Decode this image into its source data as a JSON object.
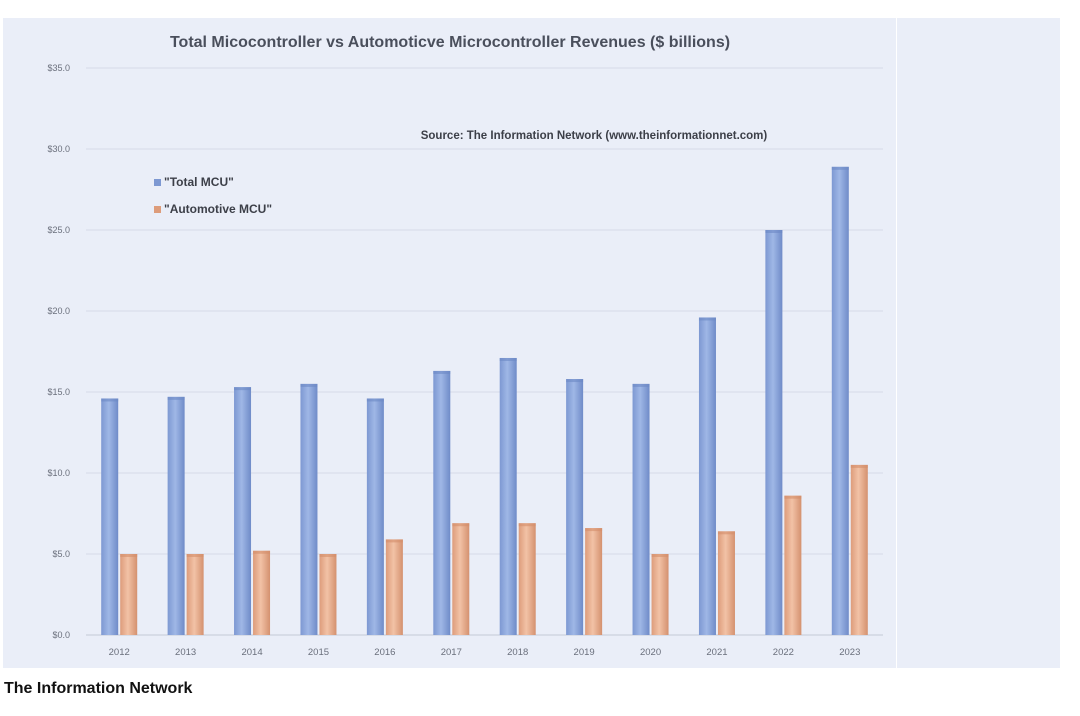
{
  "caption": "The Information Network",
  "colors": {
    "panel": "#eaeef8",
    "total": "#8ea9dc",
    "total_dark": "#6c88c4",
    "auto": "#eab192",
    "auto_dark": "#d48d6b"
  },
  "chart_data": {
    "type": "bar",
    "title": "Total Micocontroller vs Automoticve Microcontroller Revenues ($ billions)",
    "annotation": "Source: The Information Network (www.theinformationnet.com)",
    "xlabel": "",
    "ylabel": "",
    "ylim": [
      0,
      35
    ],
    "yticks": [
      "$0.0",
      "$5.0",
      "$10.0",
      "$15.0",
      "$20.0",
      "$25.0",
      "$30.0",
      "$35.0"
    ],
    "ytick_values": [
      0,
      5,
      10,
      15,
      20,
      25,
      30,
      35
    ],
    "grid": true,
    "legend_position": "top-left",
    "categories": [
      "2012",
      "2013",
      "2014",
      "2015",
      "2016",
      "2017",
      "2018",
      "2019",
      "2020",
      "2021",
      "2022",
      "2023"
    ],
    "series": [
      {
        "name": "\"Total MCU\"",
        "values": [
          14.6,
          14.7,
          15.3,
          15.5,
          14.6,
          16.3,
          17.1,
          15.8,
          15.5,
          19.6,
          25.0,
          28.9
        ]
      },
      {
        "name": "\"Automotive MCU\"",
        "values": [
          5.0,
          5.0,
          5.2,
          5.0,
          5.9,
          6.9,
          6.9,
          6.6,
          5.0,
          6.4,
          8.6,
          10.5
        ]
      }
    ]
  }
}
